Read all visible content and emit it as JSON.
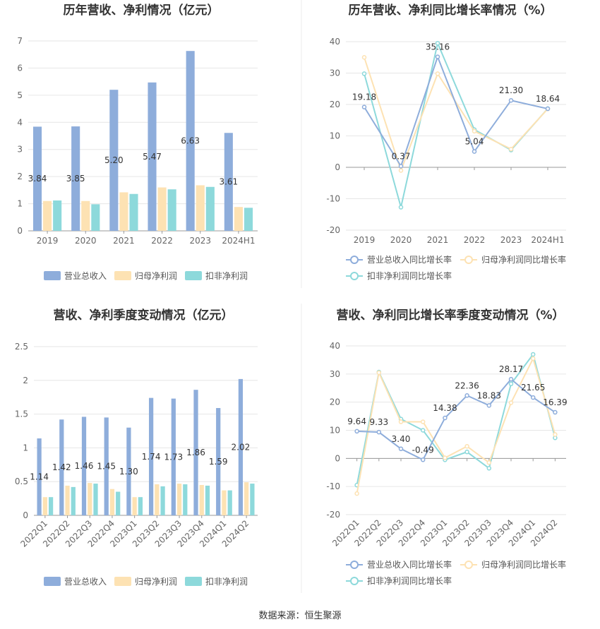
{
  "source": "数据来源：恒生聚源",
  "chart_data": [
    {
      "id": "annual-bar",
      "type": "bar",
      "title": "历年营收、净利情况（亿元）",
      "categories": [
        "2019",
        "2020",
        "2021",
        "2022",
        "2023",
        "2024H1"
      ],
      "ylim": [
        0,
        7
      ],
      "yticks": [
        0,
        1,
        2,
        3,
        4,
        5,
        6,
        7
      ],
      "series": [
        {
          "name": "营业总收入",
          "color": "#8EADDB",
          "values": [
            3.84,
            3.85,
            5.2,
            5.47,
            6.63,
            3.61
          ],
          "labels": [
            "3.84",
            "3.85",
            "5.20",
            "5.47",
            "6.63",
            "3.61"
          ]
        },
        {
          "name": "归母净利润",
          "color": "#FDE2B3",
          "values": [
            1.1,
            1.1,
            1.42,
            1.6,
            1.68,
            0.88
          ]
        },
        {
          "name": "扣非净利润",
          "color": "#8DD9DB",
          "values": [
            1.12,
            0.98,
            1.36,
            1.53,
            1.62,
            0.85
          ]
        }
      ]
    },
    {
      "id": "annual-line",
      "type": "line",
      "title": "历年营收、净利同比增长率情况（%）",
      "categories": [
        "2019",
        "2020",
        "2021",
        "2022",
        "2023",
        "2024H1"
      ],
      "ylim": [
        -20,
        40
      ],
      "yticks": [
        -20,
        -10,
        0,
        10,
        20,
        30,
        40
      ],
      "series": [
        {
          "name": "营业总收入同比增长率",
          "color": "#8EADDB",
          "values": [
            19.18,
            0.37,
            35.16,
            5.04,
            21.3,
            18.64
          ],
          "labels": [
            "19.18",
            "0.37",
            "35.16",
            "5.04",
            "21.30",
            "18.64"
          ]
        },
        {
          "name": "归母净利润同比增长率",
          "color": "#FDE2B3",
          "values": [
            35.0,
            -1.0,
            29.8,
            11.5,
            5.8,
            18.6
          ]
        },
        {
          "name": "扣非净利润同比增长率",
          "color": "#8DD9DB",
          "values": [
            29.8,
            -12.7,
            39.5,
            12.0,
            5.5,
            18.7
          ]
        }
      ]
    },
    {
      "id": "quarter-bar",
      "type": "bar",
      "title": "营收、净利季度变动情况（亿元）",
      "categories": [
        "2022Q1",
        "2022Q2",
        "2022Q3",
        "2022Q4",
        "2023Q1",
        "2023Q2",
        "2023Q3",
        "2023Q4",
        "2024Q1",
        "2024Q2"
      ],
      "ylim": [
        0,
        2.5
      ],
      "yticks": [
        0,
        0.5,
        1,
        1.5,
        2,
        2.5
      ],
      "series": [
        {
          "name": "营业总收入",
          "color": "#8EADDB",
          "values": [
            1.14,
            1.42,
            1.46,
            1.45,
            1.3,
            1.74,
            1.73,
            1.86,
            1.59,
            2.02
          ],
          "labels": [
            "1.14",
            "1.42",
            "1.46",
            "1.45",
            "1.30",
            "1.74",
            "1.73",
            "1.86",
            "1.59",
            "2.02"
          ]
        },
        {
          "name": "归母净利润",
          "color": "#FDE2B3",
          "values": [
            0.27,
            0.44,
            0.48,
            0.39,
            0.27,
            0.46,
            0.47,
            0.45,
            0.37,
            0.49
          ]
        },
        {
          "name": "扣非净利润",
          "color": "#8DD9DB",
          "values": [
            0.27,
            0.42,
            0.47,
            0.35,
            0.27,
            0.43,
            0.46,
            0.44,
            0.37,
            0.47
          ]
        }
      ]
    },
    {
      "id": "quarter-line",
      "type": "line",
      "title": "营收、净利同比增长率季度变动情况（%）",
      "categories": [
        "2022Q1",
        "2022Q2",
        "2022Q3",
        "2022Q4",
        "2023Q1",
        "2023Q2",
        "2023Q3",
        "2023Q4",
        "2024Q1",
        "2024Q2"
      ],
      "ylim": [
        -20,
        40
      ],
      "yticks": [
        -20,
        -10,
        0,
        10,
        20,
        30,
        40
      ],
      "series": [
        {
          "name": "营业总收入同比增长率",
          "color": "#8EADDB",
          "values": [
            9.64,
            9.33,
            3.4,
            -0.49,
            14.38,
            22.36,
            18.83,
            28.17,
            21.65,
            16.39
          ],
          "labels": [
            "9.64",
            "9.33",
            "3.40",
            "-0.49",
            "14.38",
            "22.36",
            "18.83",
            "28.17",
            "21.65",
            "16.39"
          ]
        },
        {
          "name": "归母净利润同比增长率",
          "color": "#FDE2B3",
          "values": [
            -12.5,
            30.5,
            13.0,
            13.0,
            0.2,
            4.3,
            -1.5,
            19.8,
            35.5,
            8.5
          ]
        },
        {
          "name": "扣非净利润同比增长率",
          "color": "#8DD9DB",
          "values": [
            -9.5,
            30.7,
            14.0,
            10.0,
            -0.5,
            2.3,
            -3.5,
            26.5,
            37.0,
            7.3
          ]
        }
      ]
    }
  ]
}
